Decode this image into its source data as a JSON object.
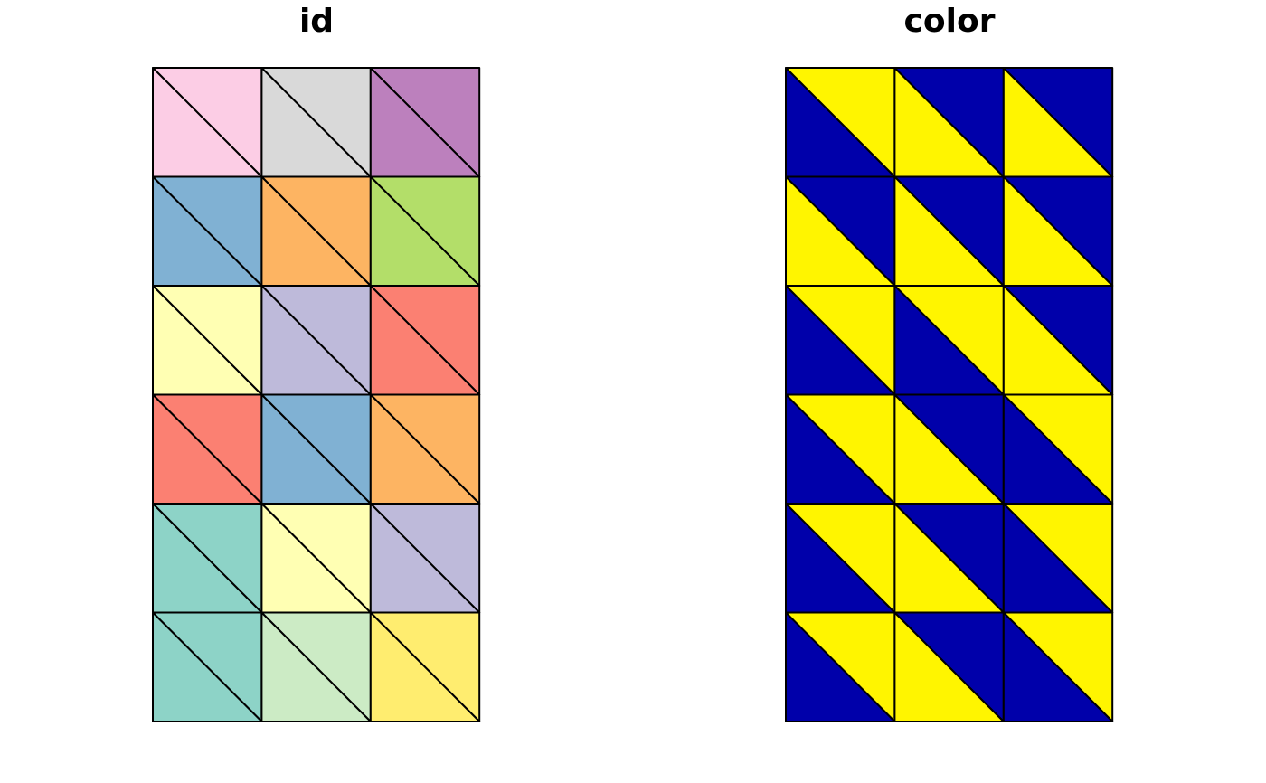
{
  "panels": [
    {
      "title": "id",
      "cols": 3,
      "rows": 6,
      "cells": [
        {
          "upper": "#FCCDE5",
          "lower": "#FCCDE5"
        },
        {
          "upper": "#D9D9D9",
          "lower": "#D9D9D9"
        },
        {
          "upper": "#BC80BD",
          "lower": "#BC80BD"
        },
        {
          "upper": "#80B1D3",
          "lower": "#80B1D3"
        },
        {
          "upper": "#FDB462",
          "lower": "#FDB462"
        },
        {
          "upper": "#B3DE69",
          "lower": "#B3DE69"
        },
        {
          "upper": "#FFFFB3",
          "lower": "#FFFFB3"
        },
        {
          "upper": "#BEBADA",
          "lower": "#BEBADA"
        },
        {
          "upper": "#FB8072",
          "lower": "#FB8072"
        },
        {
          "upper": "#FB8072",
          "lower": "#FB8072"
        },
        {
          "upper": "#80B1D3",
          "lower": "#80B1D3"
        },
        {
          "upper": "#FDB462",
          "lower": "#FDB462"
        },
        {
          "upper": "#8DD3C7",
          "lower": "#8DD3C7"
        },
        {
          "upper": "#FFFFB3",
          "lower": "#FFFFB3"
        },
        {
          "upper": "#BEBADA",
          "lower": "#BEBADA"
        },
        {
          "upper": "#8DD3C7",
          "lower": "#8DD3C7"
        },
        {
          "upper": "#CCEBC5",
          "lower": "#CCEBC5"
        },
        {
          "upper": "#FFED6F",
          "lower": "#FFED6F"
        }
      ]
    },
    {
      "title": "color",
      "cols": 3,
      "rows": 6,
      "cells": [
        {
          "upper": "#FFF500",
          "lower": "#0000AA"
        },
        {
          "upper": "#0000AA",
          "lower": "#FFF500"
        },
        {
          "upper": "#0000AA",
          "lower": "#FFF500"
        },
        {
          "upper": "#0000AA",
          "lower": "#FFF500"
        },
        {
          "upper": "#0000AA",
          "lower": "#FFF500"
        },
        {
          "upper": "#0000AA",
          "lower": "#FFF500"
        },
        {
          "upper": "#FFF500",
          "lower": "#0000AA"
        },
        {
          "upper": "#FFF500",
          "lower": "#0000AA"
        },
        {
          "upper": "#0000AA",
          "lower": "#FFF500"
        },
        {
          "upper": "#FFF500",
          "lower": "#0000AA"
        },
        {
          "upper": "#0000AA",
          "lower": "#FFF500"
        },
        {
          "upper": "#FFF500",
          "lower": "#0000AA"
        },
        {
          "upper": "#FFF500",
          "lower": "#0000AA"
        },
        {
          "upper": "#0000AA",
          "lower": "#FFF500"
        },
        {
          "upper": "#FFF500",
          "lower": "#0000AA"
        },
        {
          "upper": "#FFF500",
          "lower": "#0000AA"
        },
        {
          "upper": "#0000AA",
          "lower": "#FFF500"
        },
        {
          "upper": "#FFF500",
          "lower": "#0000AA"
        }
      ]
    }
  ]
}
